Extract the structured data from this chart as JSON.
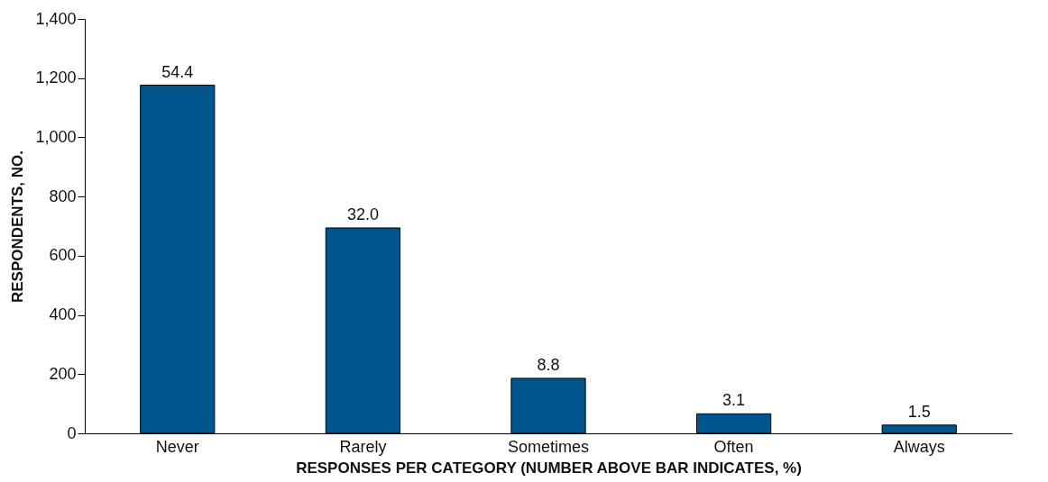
{
  "chart_data": {
    "type": "bar",
    "xlabel": "RESPONSES PER CATEGORY (NUMBER ABOVE BAR INDICATES, %)",
    "ylabel": "RESPONDENTS, NO.",
    "categories": [
      "Never",
      "Rarely",
      "Sometimes",
      "Often",
      "Always"
    ],
    "values": [
      1176,
      694,
      186,
      66,
      28
    ],
    "annotations": [
      {
        "text": "54.4",
        "x": "Never",
        "y": 1176
      },
      {
        "text": "32.0",
        "x": "Rarely",
        "y": 694
      },
      {
        "text": "8.8",
        "x": "Sometimes",
        "y": 186
      },
      {
        "text": "3.1",
        "x": "Often",
        "y": 66
      },
      {
        "text": "1.5",
        "x": "Always",
        "y": 28
      }
    ],
    "color": "#00558c",
    "ylim": [
      0,
      1400
    ],
    "yticks": [
      0,
      200,
      400,
      600,
      800,
      {
        "value": 1000,
        "label": "1,000"
      },
      {
        "value": 1200,
        "label": "1,200"
      },
      {
        "value": 1400,
        "label": "1,400"
      }
    ],
    "grid": false
  }
}
